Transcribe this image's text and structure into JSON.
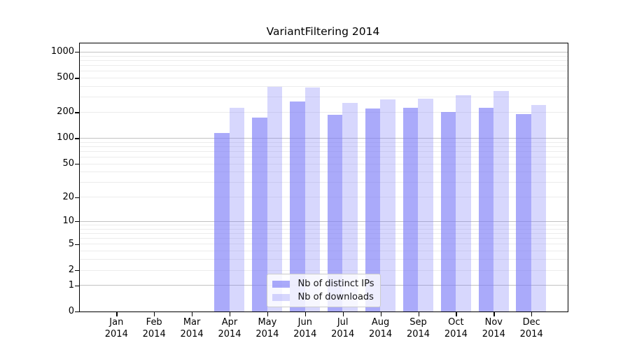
{
  "chart_data": {
    "type": "bar",
    "title": "VariantFiltering 2014",
    "x_tick_months": [
      "Jan",
      "Feb",
      "Mar",
      "Apr",
      "May",
      "Jun",
      "Jul",
      "Aug",
      "Sep",
      "Oct",
      "Nov",
      "Dec"
    ],
    "x_tick_year": "2014",
    "series": [
      {
        "name": "Nb of distinct IPs",
        "color": "rgba(124,124,247,0.65)",
        "values": [
          0,
          0,
          0,
          115,
          175,
          267,
          188,
          222,
          226,
          202,
          226,
          193
        ]
      },
      {
        "name": "Nb of downloads",
        "color": "rgba(124,124,247,0.30)",
        "values": [
          0,
          0,
          0,
          225,
          400,
          391,
          259,
          281,
          291,
          316,
          357,
          243
        ]
      }
    ],
    "yscale": "log1p",
    "ylim": [
      0,
      1000
    ],
    "y_ticks": [
      0,
      1,
      2,
      5,
      10,
      20,
      50,
      100,
      200,
      500,
      1000
    ],
    "major_gridlines": [
      1,
      10,
      100,
      1000
    ],
    "minor_gridlines": [
      2,
      3,
      4,
      5,
      6,
      7,
      8,
      9,
      20,
      30,
      40,
      50,
      60,
      70,
      80,
      90,
      200,
      300,
      400,
      500,
      600,
      700,
      800,
      900
    ],
    "grid": true,
    "legend_position": "lower center"
  },
  "colors": {
    "bar_ips": "rgba(124,124,247,0.65)",
    "bar_downloads": "rgba(124,124,247,0.30)",
    "gridline_major": "#c2c2c2",
    "gridline_minor": "#ececec",
    "axis": "#000000",
    "legend_border": "#cccccc",
    "legend_bg": "rgba(255,255,255,0.8)"
  }
}
